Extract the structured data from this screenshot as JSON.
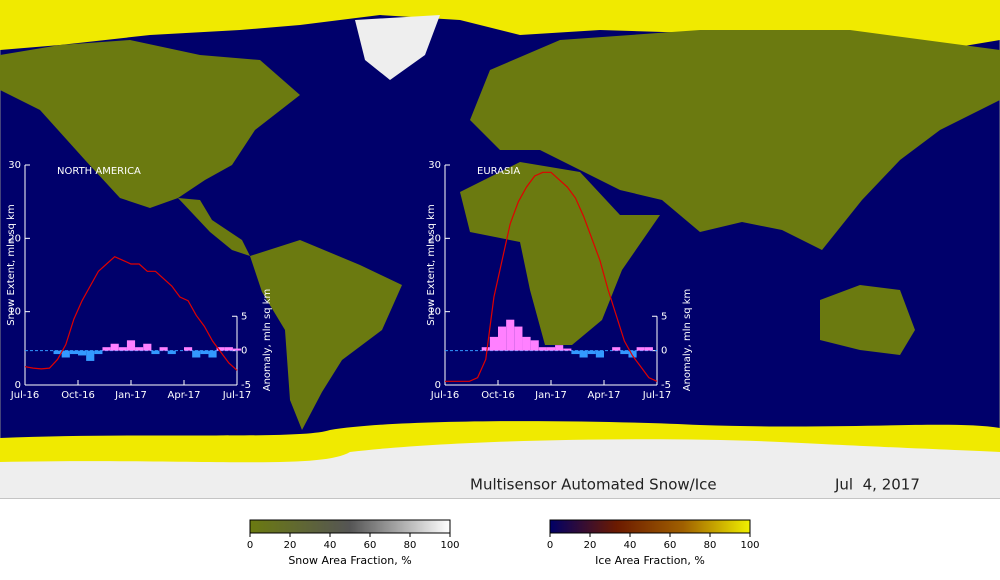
{
  "title": "Multisensor Automated Snow/Ice",
  "date": "Jul  4, 2017",
  "insets": [
    {
      "region": "NORTH AMERICA",
      "ylabel": "Snow Extent, mln sq km",
      "y2label": "Anomaly, mln sq km",
      "xlim": [
        0,
        52
      ],
      "xticks": [
        {
          "value": 0,
          "label": "Jul-16"
        },
        {
          "value": 13,
          "label": "Oct-16"
        },
        {
          "value": 26,
          "label": "Jan-17"
        },
        {
          "value": 39,
          "label": "Apr-17"
        },
        {
          "value": 52,
          "label": "Jul-17"
        }
      ],
      "ylim": [
        0,
        30
      ],
      "yticks": [
        0,
        10,
        20,
        30
      ],
      "y2lim": [
        -5,
        27
      ],
      "y2ticks": [
        -5,
        0,
        5
      ],
      "x": [
        0,
        2,
        4,
        6,
        8,
        10,
        12,
        14,
        16,
        18,
        20,
        22,
        24,
        26,
        28,
        30,
        32,
        34,
        36,
        38,
        40,
        42,
        44,
        46,
        48,
        50,
        52
      ],
      "extent": {
        "color": "#e00000",
        "values": [
          2.5,
          2.3,
          2.2,
          2.3,
          3.5,
          5.5,
          9,
          11.5,
          13.5,
          15.5,
          16.5,
          17.5,
          17,
          16.5,
          16.5,
          15.5,
          15.5,
          14.5,
          13.5,
          12,
          11.5,
          9.5,
          8,
          6,
          4.5,
          3,
          2
        ]
      },
      "anomaly": {
        "positive_color": "#ff80ff",
        "negative_color": "#3399ff",
        "values": [
          0,
          0,
          0,
          0,
          -0.5,
          -1,
          -0.5,
          -0.7,
          -1.5,
          -0.5,
          0.5,
          1,
          0.5,
          1.5,
          0.5,
          1,
          -0.5,
          0.5,
          -0.5,
          0,
          0.5,
          -1,
          -0.5,
          -1,
          0.5,
          0.5,
          0.3
        ]
      }
    },
    {
      "region": "EURASIA",
      "ylabel": "Snow Extent, mln sq km",
      "y2label": "Anomaly, mln sq km",
      "xlim": [
        0,
        52
      ],
      "xticks": [
        {
          "value": 0,
          "label": "Jul-16"
        },
        {
          "value": 13,
          "label": "Oct-16"
        },
        {
          "value": 26,
          "label": "Jan-17"
        },
        {
          "value": 39,
          "label": "Apr-17"
        },
        {
          "value": 52,
          "label": "Jul-17"
        }
      ],
      "ylim": [
        0,
        30
      ],
      "yticks": [
        0,
        10,
        20,
        30
      ],
      "y2lim": [
        -5,
        27
      ],
      "y2ticks": [
        -5,
        0,
        5
      ],
      "x": [
        0,
        2,
        4,
        6,
        8,
        10,
        12,
        14,
        16,
        18,
        20,
        22,
        24,
        26,
        28,
        30,
        32,
        34,
        36,
        38,
        40,
        42,
        44,
        46,
        48,
        50,
        52
      ],
      "extent": {
        "color": "#e00000",
        "values": [
          0.5,
          0.5,
          0.5,
          0.5,
          1,
          3.5,
          12,
          17,
          22,
          25,
          27,
          28.5,
          29,
          29,
          28,
          27,
          25.5,
          23,
          20,
          17,
          13,
          9.5,
          6,
          4,
          2.5,
          1,
          0.5
        ]
      },
      "anomaly": {
        "positive_color": "#ff80ff",
        "negative_color": "#3399ff",
        "values": [
          0,
          0,
          0,
          0,
          0,
          0.5,
          2,
          3.5,
          4.5,
          3.5,
          2,
          1.5,
          0.5,
          0.5,
          0.8,
          0.3,
          -0.5,
          -1,
          -0.5,
          -1,
          0,
          0.5,
          -0.5,
          -1,
          0.5,
          0.5,
          0
        ]
      }
    }
  ],
  "colorbars": [
    {
      "label": "Snow Area Fraction, %",
      "lim": [
        0,
        100
      ],
      "ticks": [
        0,
        20,
        40,
        60,
        80,
        100
      ],
      "colors": [
        "#6b7a10",
        "#555555",
        "#ffffff"
      ]
    },
    {
      "label": "Ice Area Fraction, %",
      "lim": [
        0,
        100
      ],
      "ticks": [
        0,
        20,
        40,
        60,
        80,
        100
      ],
      "colors": [
        "#000066",
        "#6b1a00",
        "#a06000",
        "#f0f000"
      ]
    }
  ]
}
